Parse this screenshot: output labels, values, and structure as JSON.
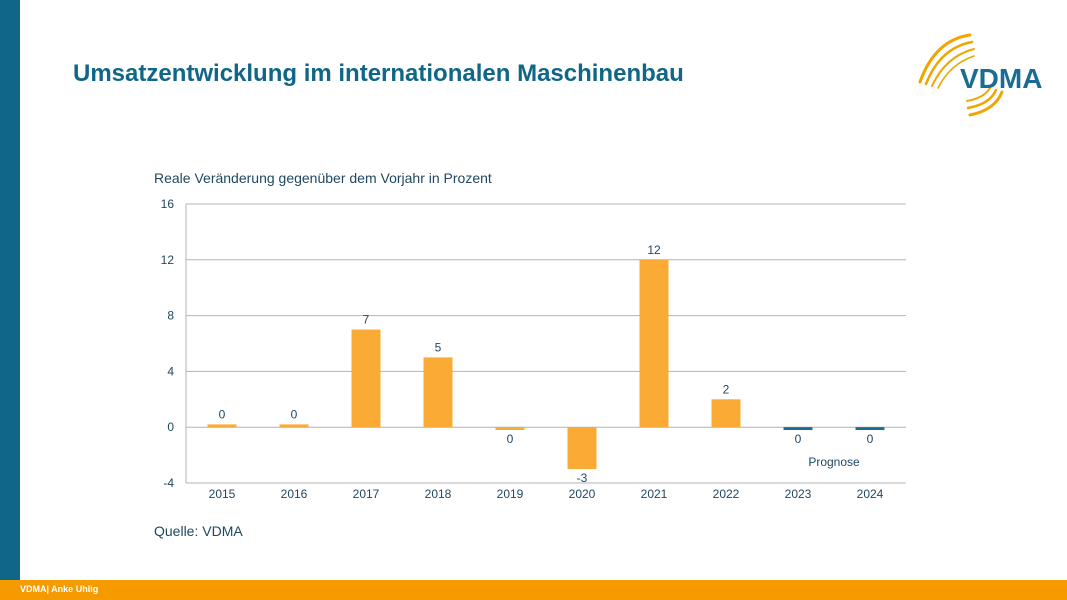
{
  "slide": {
    "title": "Umsatzentwicklung im internationalen Maschinenbau",
    "source": "Quelle: VDMA",
    "footer": "VDMA| Anke Uhlig",
    "logo_text": "VDMA"
  },
  "colors": {
    "accent_blue": "#0f6687",
    "accent_orange": "#f59b00",
    "bar_actual": "#f9ab35",
    "bar_forecast": "#1a6c94",
    "text": "#1f4761",
    "grid": "#b4b4b4"
  },
  "chart_data": {
    "type": "bar",
    "title": "Reale Veränderung gegenüber dem Vorjahr in Prozent",
    "categories": [
      "2015",
      "2016",
      "2017",
      "2018",
      "2019",
      "2020",
      "2021",
      "2022",
      "2023",
      "2024"
    ],
    "values": [
      0.2,
      0.2,
      7,
      5,
      -0.2,
      -3,
      12,
      2,
      -0.2,
      -0.2
    ],
    "data_labels": [
      "0",
      "0",
      "7",
      "5",
      "0",
      "-3",
      "12",
      "2",
      "0",
      "0"
    ],
    "forecast": [
      false,
      false,
      false,
      false,
      false,
      false,
      false,
      false,
      true,
      true
    ],
    "forecast_label": "Prognose",
    "ylim": [
      -4,
      16
    ],
    "yticks": [
      -4,
      0,
      4,
      8,
      12,
      16
    ],
    "grid": true,
    "legend": false
  }
}
